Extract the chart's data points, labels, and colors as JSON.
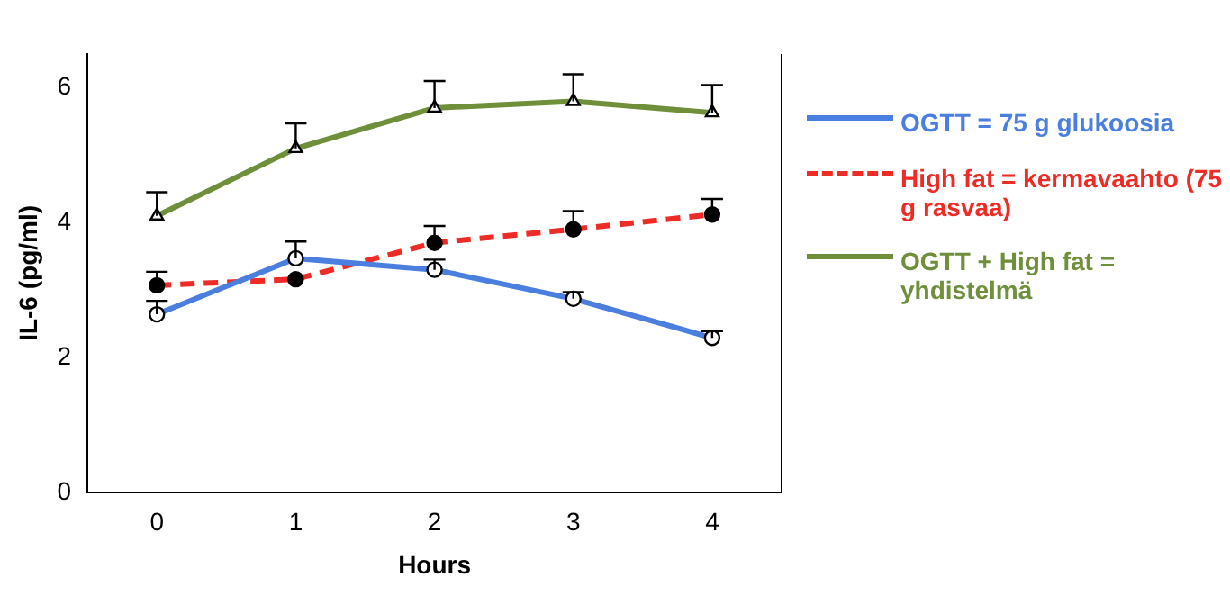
{
  "chart_data": {
    "type": "line",
    "xlabel": "Hours",
    "ylabel": "IL-6 (pg/ml)",
    "categories": [
      "0",
      "1",
      "2",
      "3",
      "4"
    ],
    "ylim": [
      0,
      6.5
    ],
    "yticks": [
      0,
      2,
      4,
      6
    ],
    "grid": false,
    "legend": "right",
    "series": [
      {
        "name": "OGTT = 75 g  glukoosia",
        "color": "#4a7fe0",
        "marker": "circle",
        "line_style": "solid",
        "values": [
          2.64,
          3.47,
          3.3,
          2.87,
          2.29
        ],
        "errors": [
          [
            2.64,
            2.84
          ],
          [
            3.47,
            3.72
          ],
          [
            3.3,
            3.45
          ],
          [
            2.87,
            2.97
          ],
          [
            2.29,
            2.39
          ]
        ]
      },
      {
        "name": "High fat = kermavaahto (75 g rasvaa)",
        "color": "#ee2b24",
        "marker": "circle",
        "line_style": "dashed",
        "values": [
          3.07,
          3.16,
          3.7,
          3.9,
          4.12
        ],
        "errors": [
          [
            3.07,
            3.27
          ],
          null,
          [
            3.7,
            3.95
          ],
          [
            3.9,
            4.17
          ],
          [
            4.12,
            4.35
          ]
        ]
      },
      {
        "name": "OGTT + High fat = yhdistelmä",
        "color": "#6f8f3a",
        "marker": "triangle",
        "line_style": "solid",
        "values": [
          4.1,
          5.1,
          5.7,
          5.8,
          5.63
        ],
        "errors": [
          [
            4.1,
            4.45
          ],
          [
            5.1,
            5.47
          ],
          [
            5.7,
            6.1
          ],
          [
            5.8,
            6.2
          ],
          [
            5.63,
            6.04
          ]
        ]
      }
    ]
  }
}
